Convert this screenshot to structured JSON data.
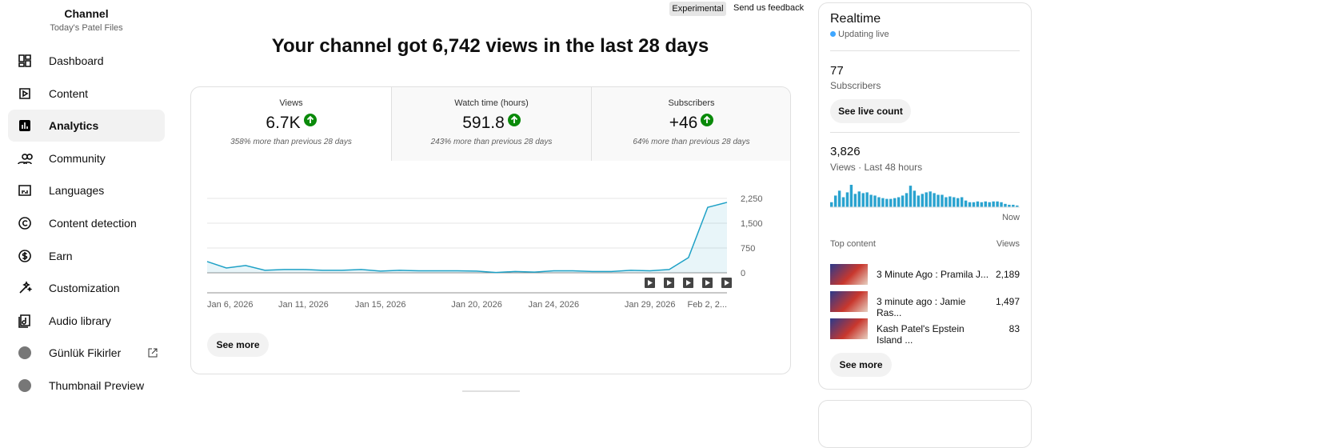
{
  "sidebar": {
    "title": "Channel",
    "subtitle": "Today's Patel Files",
    "items": [
      "Dashboard",
      "Content",
      "Analytics",
      "Community",
      "Languages",
      "Content detection",
      "Earn",
      "Customization",
      "Audio library",
      "Günlük Fikirler",
      "Thumbnail Preview"
    ]
  },
  "header": {
    "badge": "Experimental",
    "feedback": "Send us feedback"
  },
  "headline": "Your channel got 6,742 views in the last 28 days",
  "metrics": [
    {
      "label": "Views",
      "value": "6.7K",
      "change": "358% more than previous 28 days"
    },
    {
      "label": "Watch time (hours)",
      "value": "591.8",
      "change": "243% more than previous 28 days"
    },
    {
      "label": "Subscribers",
      "value": "+46",
      "change": "64% more than previous 28 days"
    }
  ],
  "see_more": "See more",
  "realtime": {
    "title": "Realtime",
    "status": "Updating live",
    "subscribers_value": "77",
    "subscribers_label": "Subscribers",
    "live_count_button": "See live count",
    "views_value": "3,826",
    "views_label": "Views · Last 48 hours",
    "now_label": "Now",
    "top_content_label": "Top content",
    "views_header": "Views",
    "top_content": [
      {
        "title": "3 Minute Ago : Pramila J...",
        "views": "2,189"
      },
      {
        "title": "3 minute ago : Jamie Ras...",
        "views": "1,497"
      },
      {
        "title": "Kash Patel's Epstein Island ...",
        "views": "83"
      }
    ],
    "see_more": "See more"
  },
  "chart_data": [
    {
      "type": "line",
      "x": [
        "Jan 6, 2026",
        "Jan 7, 2026",
        "Jan 8, 2026",
        "Jan 9, 2026",
        "Jan 10, 2026",
        "Jan 11, 2026",
        "Jan 12, 2026",
        "Jan 13, 2026",
        "Jan 14, 2026",
        "Jan 15, 2026",
        "Jan 16, 2026",
        "Jan 17, 2026",
        "Jan 18, 2026",
        "Jan 19, 2026",
        "Jan 20, 2026",
        "Jan 21, 2026",
        "Jan 22, 2026",
        "Jan 23, 2026",
        "Jan 24, 2026",
        "Jan 25, 2026",
        "Jan 26, 2026",
        "Jan 27, 2026",
        "Jan 28, 2026",
        "Jan 29, 2026",
        "Jan 30, 2026",
        "Jan 31, 2026",
        "Feb 1, 2026",
        "Feb 2, 2026"
      ],
      "values": [
        340,
        145,
        220,
        75,
        100,
        100,
        75,
        75,
        100,
        50,
        75,
        60,
        60,
        60,
        50,
        10,
        40,
        20,
        60,
        60,
        40,
        40,
        75,
        60,
        100,
        460,
        1980,
        2130
      ],
      "color": "#1ea1c6",
      "ylim": [
        0,
        2250
      ],
      "yticks": [
        0,
        750,
        {
          "value": 1500,
          "label": "1,500"
        },
        {
          "value": 2250,
          "label": "2,250"
        }
      ],
      "xticks": [
        "Jan 6, 2026",
        "Jan 11, 2026",
        "Jan 15, 2026",
        "Jan 20, 2026",
        "Jan 24, 2026",
        "Jan 29, 2026",
        {
          "value": "Feb 2, 2026",
          "label": "Feb 2, 2..."
        }
      ],
      "grid": true
    },
    {
      "type": "bar",
      "values": [
        39,
        91,
        129,
        78,
        116,
        175,
        104,
        123,
        110,
        116,
        97,
        91,
        78,
        71,
        65,
        65,
        71,
        78,
        91,
        110,
        168,
        129,
        91,
        104,
        116,
        123,
        110,
        97,
        97,
        78,
        84,
        78,
        71,
        78,
        52,
        39,
        39,
        45,
        39,
        45,
        39,
        45,
        45,
        39,
        26,
        19,
        19,
        13
      ],
      "color": "#2aa3cf"
    }
  ]
}
